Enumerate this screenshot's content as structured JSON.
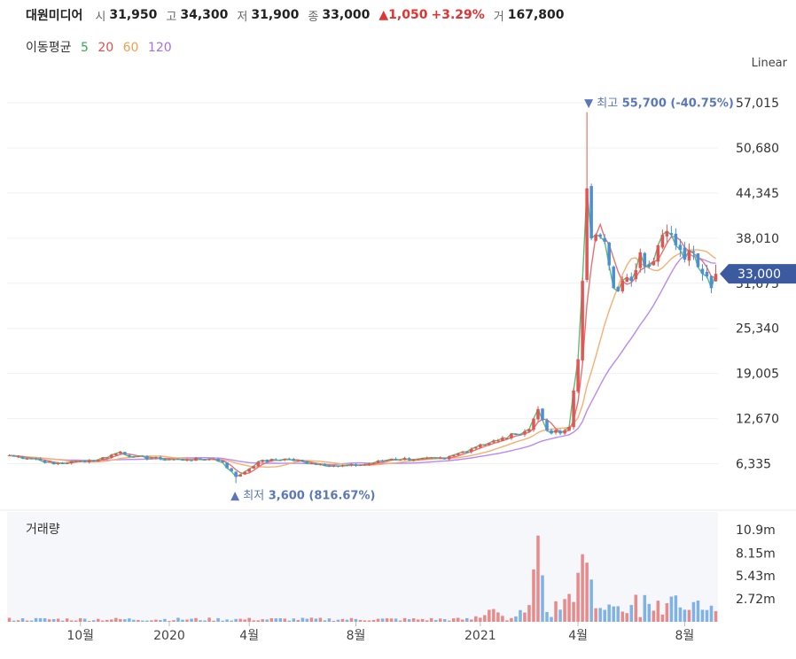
{
  "header": {
    "name": "대원미디어",
    "open_label": "시",
    "open": "31,950",
    "high_label": "고",
    "high": "34,300",
    "low_label": "저",
    "low": "31,900",
    "close_label": "종",
    "close": "33,000",
    "change": "▲1,050",
    "change_pct": "+3.29%",
    "volume_label": "거",
    "volume": "167,800"
  },
  "ma_legend": {
    "title": "이동평균",
    "items": [
      {
        "label": "5",
        "color": "#3aa655"
      },
      {
        "label": "20",
        "color": "#e05050"
      },
      {
        "label": "60",
        "color": "#f0a050"
      },
      {
        "label": "120",
        "color": "#a070f0"
      }
    ]
  },
  "scale_type": "Linear",
  "volume_title": "거래량",
  "colors": {
    "up": "#e05555",
    "down": "#4a8fd8",
    "current_tag": "#3b5aa0"
  },
  "chart_data": {
    "type": "candlestick",
    "y_axis": {
      "ticks": [
        "57,015",
        "50,680",
        "44,345",
        "38,010",
        "31,675",
        "25,340",
        "19,005",
        "12,670",
        "6,335"
      ],
      "tick_values": [
        57015,
        50680,
        44345,
        38010,
        31675,
        25340,
        19005,
        12670,
        6335
      ],
      "ylim": [
        1800,
        60500
      ]
    },
    "x_axis": {
      "ticks": [
        "10월",
        "2020",
        "4월",
        "8월",
        "2021",
        "4월",
        "8월"
      ],
      "tick_index": [
        16,
        36,
        54,
        78,
        106,
        128,
        152
      ]
    },
    "n_periods": 160,
    "current_price_tag": "33,000",
    "current_price": 33000,
    "annotations": {
      "high": {
        "prefix": "최고",
        "value": "55,700 (-40.75%)",
        "price": 55700,
        "index": 130
      },
      "low": {
        "prefix": "최저",
        "value": "3,600 (816.67%)",
        "price": 3600,
        "index": 51
      }
    },
    "price_anchors": [
      [
        0,
        7500
      ],
      [
        6,
        7000
      ],
      [
        10,
        6300
      ],
      [
        16,
        6700
      ],
      [
        20,
        6900
      ],
      [
        25,
        8000
      ],
      [
        28,
        7300
      ],
      [
        34,
        7000
      ],
      [
        40,
        6900
      ],
      [
        46,
        7000
      ],
      [
        48,
        6500
      ],
      [
        51,
        4500
      ],
      [
        53,
        5200
      ],
      [
        56,
        6600
      ],
      [
        62,
        7000
      ],
      [
        68,
        6400
      ],
      [
        74,
        6000
      ],
      [
        80,
        6200
      ],
      [
        86,
        7000
      ],
      [
        92,
        7000
      ],
      [
        98,
        7000
      ],
      [
        102,
        8000
      ],
      [
        106,
        9000
      ],
      [
        110,
        9600
      ],
      [
        114,
        10500
      ],
      [
        117,
        11200
      ],
      [
        119,
        14000
      ],
      [
        121,
        11000
      ],
      [
        124,
        10600
      ],
      [
        126,
        11500
      ],
      [
        128,
        21000
      ],
      [
        129,
        32000
      ],
      [
        130,
        45000
      ],
      [
        131,
        38000
      ],
      [
        132,
        38500
      ],
      [
        134,
        37500
      ],
      [
        136,
        31000
      ],
      [
        140,
        32000
      ],
      [
        142,
        36000
      ],
      [
        144,
        34000
      ],
      [
        146,
        37000
      ],
      [
        148,
        39000
      ],
      [
        150,
        37000
      ],
      [
        152,
        35000
      ],
      [
        154,
        36000
      ],
      [
        156,
        33000
      ],
      [
        158,
        31000
      ],
      [
        159,
        33000
      ]
    ],
    "volume_axis": {
      "ticks": [
        "10.9m",
        "8.15m",
        "5.43m",
        "2.72m"
      ],
      "tick_values": [
        10.9,
        8.15,
        5.43,
        2.72
      ],
      "ylim": [
        0,
        13.0
      ]
    }
  }
}
